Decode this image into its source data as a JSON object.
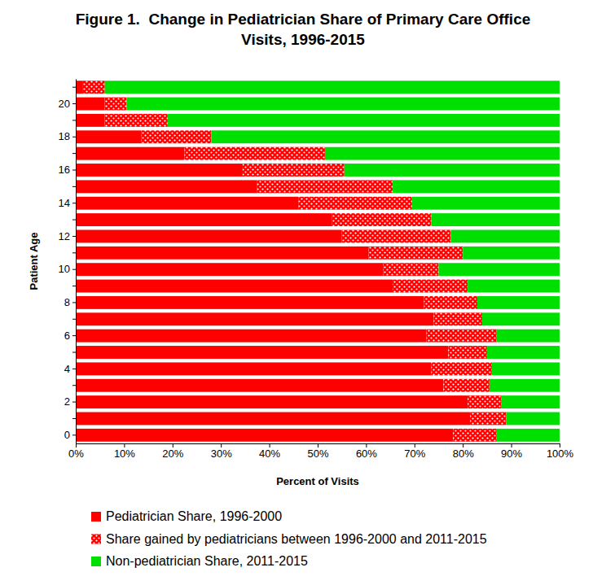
{
  "chart_data": {
    "type": "bar",
    "orientation": "horizontal",
    "stacked": true,
    "title": "Figure 1.  Change in Pediatrician Share of Primary Care Office\nVisits, 1996-2015",
    "x_label": "Percent of Visits",
    "y_label": "Patient Age",
    "categories": [
      "0",
      null,
      "2",
      null,
      "4",
      null,
      "6",
      null,
      "8",
      null,
      "10",
      null,
      "12",
      null,
      "14",
      null,
      "16",
      null,
      "18",
      null,
      "20",
      null
    ],
    "series": [
      {
        "name": "Pediatrician Share, 1996-2000",
        "color": "#ff0000",
        "values": [
          78,
          81.5,
          81,
          76,
          73.5,
          77,
          72.5,
          74,
          72,
          65.5,
          63.5,
          60.5,
          55,
          53,
          46,
          37.5,
          34.5,
          22.5,
          13.5,
          6,
          6,
          1.5
        ]
      },
      {
        "name": "Share gained by pediatricians between 1996-2000 and 2011-2015",
        "color": "#ff0000",
        "values": [
          9,
          7.5,
          7,
          9.5,
          12.5,
          8,
          14.5,
          10,
          11,
          15.5,
          11.5,
          19.5,
          22.5,
          20.5,
          23.5,
          28,
          21,
          29,
          14.5,
          13,
          4.5,
          4.5
        ]
      },
      {
        "name": "Non-pediatrician Share, 2011-2015",
        "color": "#00e000",
        "values": [
          13,
          11,
          12,
          14.5,
          14,
          15,
          13,
          16,
          17,
          19,
          25,
          20,
          22.5,
          26.5,
          30.5,
          34.5,
          44.5,
          48.5,
          72,
          81,
          89.5,
          94
        ]
      }
    ],
    "xlim": [
      0,
      100
    ],
    "xticks": [
      {
        "value": 0,
        "label": "0%"
      },
      {
        "value": 10,
        "label": "10%"
      },
      {
        "value": 20,
        "label": "20%"
      },
      {
        "value": 30,
        "label": "30%"
      },
      {
        "value": 40,
        "label": "40%"
      },
      {
        "value": 50,
        "label": "50%"
      },
      {
        "value": 60,
        "label": "60%"
      },
      {
        "value": 70,
        "label": "70%"
      },
      {
        "value": 80,
        "label": "80%"
      },
      {
        "value": 90,
        "label": "90%"
      },
      {
        "value": 100,
        "label": "100%"
      }
    ],
    "grid": false,
    "legend": "bottom"
  }
}
